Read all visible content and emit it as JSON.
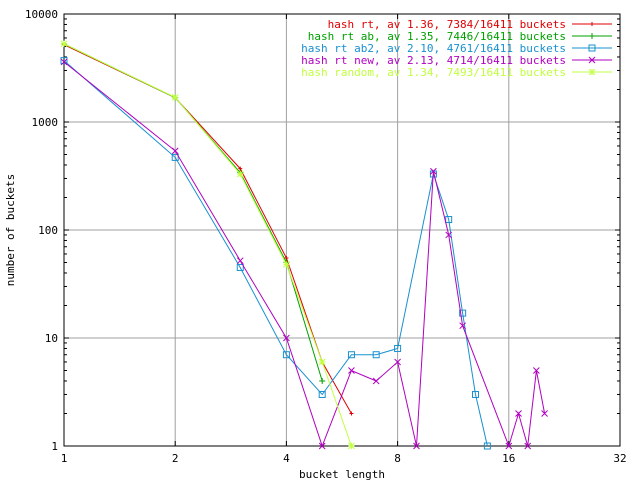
{
  "chart_data": {
    "type": "line",
    "title": "",
    "xlabel": "bucket length",
    "ylabel": "number of buckets",
    "x_scale": "log2",
    "y_scale": "log10",
    "xlim": [
      1,
      32
    ],
    "ylim": [
      1,
      10000
    ],
    "x_ticks": [
      1,
      2,
      4,
      8,
      16,
      32
    ],
    "x_tick_labels": [
      "1",
      "2",
      "4",
      "8",
      "16",
      "32"
    ],
    "y_ticks": [
      1,
      10,
      100,
      1000,
      10000
    ],
    "y_tick_labels": [
      "1",
      "10",
      "100",
      "1000",
      "10000"
    ],
    "grid": true,
    "legend_position": "top-right",
    "series": [
      {
        "name": "hash rt, av 1.36, 7384/16411 buckets",
        "color": "#e00000",
        "marker": "plus-small",
        "x": [
          1,
          2,
          3,
          4,
          5,
          6
        ],
        "y": [
          5200,
          1680,
          370,
          55,
          6,
          2
        ]
      },
      {
        "name": "hash rt ab, av 1.35, 7446/16411 buckets",
        "color": "#00a000",
        "marker": "plus",
        "x": [
          1,
          2,
          3,
          4,
          5
        ],
        "y": [
          5300,
          1680,
          340,
          50,
          4
        ]
      },
      {
        "name": "hash rt ab2, av 2.10, 4761/16411 buckets",
        "color": "#1890d0",
        "marker": "square",
        "x": [
          1,
          2,
          3,
          4,
          5,
          6,
          7,
          8,
          10,
          11,
          12,
          13,
          14
        ],
        "y": [
          3700,
          470,
          45,
          7,
          3,
          7,
          7,
          8,
          330,
          125,
          17,
          3,
          1
        ]
      },
      {
        "name": "hash rt new, av 2.13, 4714/16411 buckets",
        "color": "#b000c0",
        "marker": "x",
        "x": [
          1,
          2,
          3,
          4,
          5,
          6,
          7,
          8,
          9,
          10,
          11,
          12,
          16,
          17,
          18,
          19,
          20
        ],
        "y": [
          3600,
          540,
          52,
          10,
          1,
          5,
          4,
          6,
          1,
          350,
          90,
          13,
          1,
          2,
          1,
          5,
          2
        ]
      },
      {
        "name": "hash random, av 1.34, 7493/16411 buckets",
        "color": "#c0ff40",
        "marker": "star",
        "x": [
          1,
          2,
          3,
          4,
          5,
          6
        ],
        "y": [
          5300,
          1690,
          330,
          48,
          6,
          1
        ]
      }
    ]
  }
}
